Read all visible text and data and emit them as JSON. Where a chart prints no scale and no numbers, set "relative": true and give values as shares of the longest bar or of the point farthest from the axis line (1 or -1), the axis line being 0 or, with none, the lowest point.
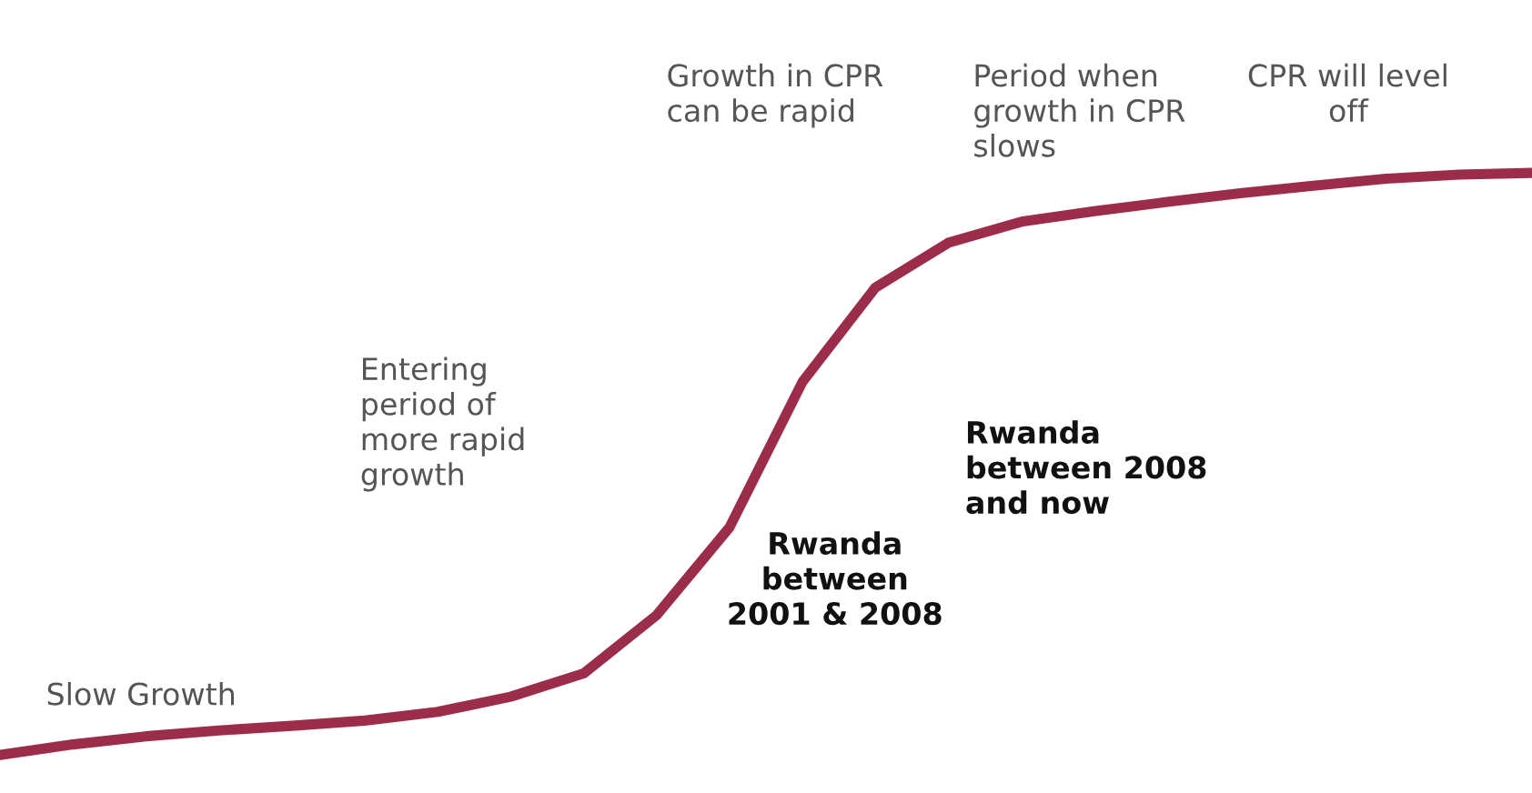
{
  "chart_data": {
    "type": "line",
    "relative": true,
    "categories": [
      null,
      null,
      null,
      null,
      null,
      null,
      null,
      null,
      null,
      null,
      null,
      null,
      null,
      null,
      null,
      null,
      null,
      null,
      null,
      null,
      null,
      null
    ],
    "series": [
      {
        "color": "#9b2d4a",
        "values": [
          0,
          0.018,
          0.032,
          0.042,
          0.05,
          0.059,
          0.074,
          0.1,
          0.14,
          0.24,
          0.391,
          0.641,
          0.803,
          0.88,
          0.916,
          0.934,
          0.95,
          0.965,
          0.978,
          0.99,
          0.997,
          1.0
        ]
      }
    ],
    "annotations": [
      "Slow Growth",
      "Entering\nperiod of\nmore rapid\ngrowth",
      "Growth in CPR\ncan be rapid",
      "Period when\ngrowth in CPR\nslows",
      "CPR will level\noff",
      "Rwanda\nbetween\n2001 & 2008",
      "Rwanda\nbetween 2008\nand now"
    ]
  }
}
